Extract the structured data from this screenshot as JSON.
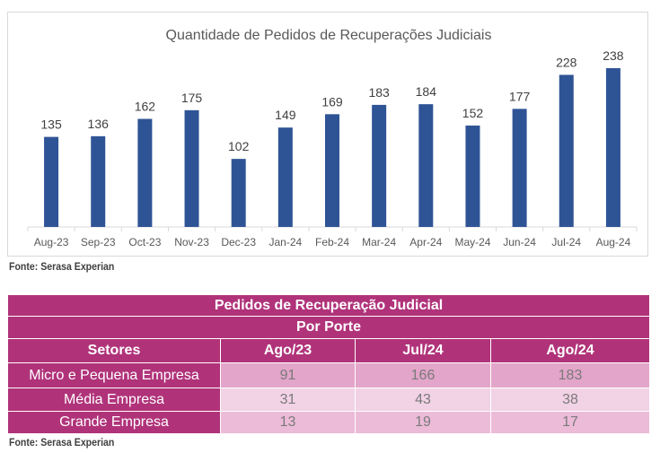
{
  "chart_data": {
    "type": "bar",
    "title": "Quantidade de Pedidos de Recuperações Judiciais",
    "categories": [
      "Aug-23",
      "Sep-23",
      "Oct-23",
      "Nov-23",
      "Dec-23",
      "Jan-24",
      "Feb-24",
      "Mar-24",
      "Apr-24",
      "May-24",
      "Jun-24",
      "Jul-24",
      "Aug-24"
    ],
    "values": [
      135,
      136,
      162,
      175,
      102,
      149,
      169,
      183,
      184,
      152,
      177,
      228,
      238
    ],
    "xlabel": "",
    "ylabel": "",
    "ylim": [
      0,
      238
    ],
    "color": "#2f5496",
    "grid": false
  },
  "chart_source": "Fonte: Serasa Experian",
  "table": {
    "title": "Pedidos de Recuperação Judicial",
    "subtitle": "Por Porte",
    "headers": [
      "Setores",
      "Ago/23",
      "Jul/24",
      "Ago/24"
    ],
    "rows": [
      {
        "label": "Micro e Pequena Empresa",
        "values": [
          "91",
          "166",
          "183"
        ]
      },
      {
        "label": "Média Empresa",
        "values": [
          "31",
          "43",
          "38"
        ]
      },
      {
        "label": "Grande Empresa",
        "values": [
          "13",
          "19",
          "17"
        ]
      }
    ]
  },
  "table_source": "Fonte: Serasa Experian"
}
